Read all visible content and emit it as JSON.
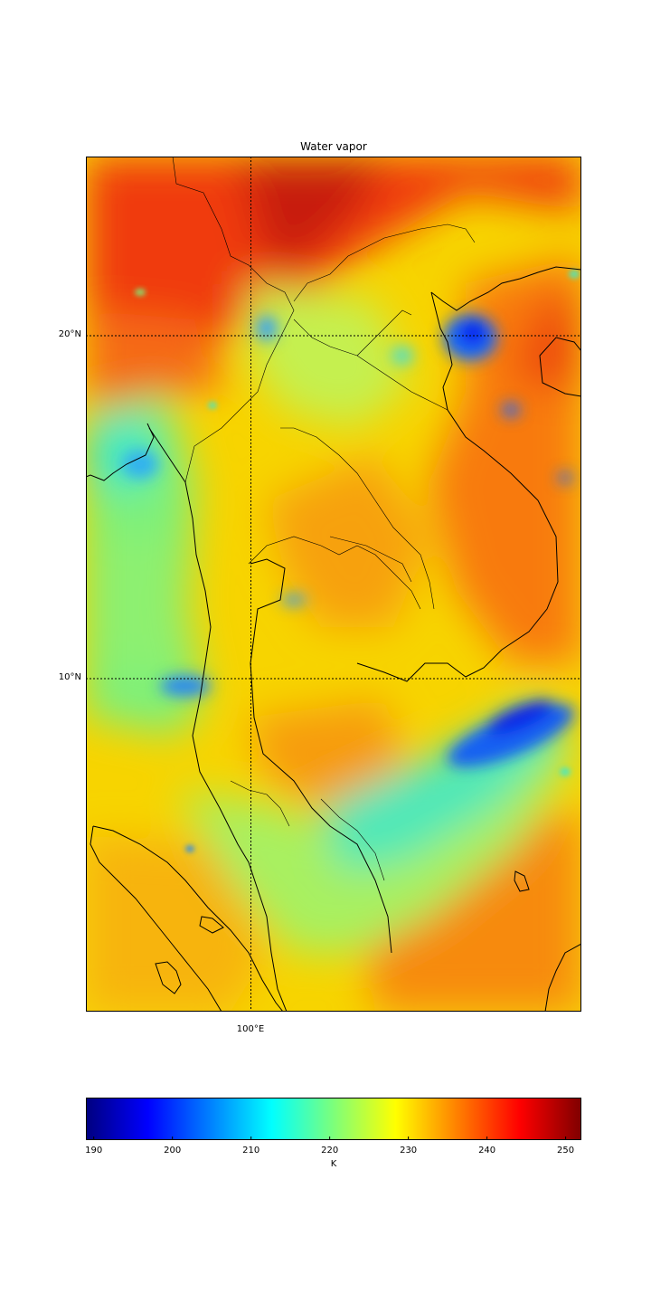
{
  "title": "Water vapor",
  "lat_labels": [
    {
      "label": "20°N",
      "lat": 20
    },
    {
      "label": "10°N",
      "lat": 10
    }
  ],
  "lon_labels": [
    {
      "label": "100°E",
      "lon": 100
    }
  ],
  "extent": {
    "lon_min": 95.2,
    "lon_max": 109.6,
    "lat_min": 0.3,
    "lat_max": 25.2
  },
  "colorbar": {
    "unit": "K",
    "min": 189,
    "max": 252,
    "ticks": [
      190,
      200,
      210,
      220,
      230,
      240,
      250
    ],
    "colormap": "jet"
  }
}
